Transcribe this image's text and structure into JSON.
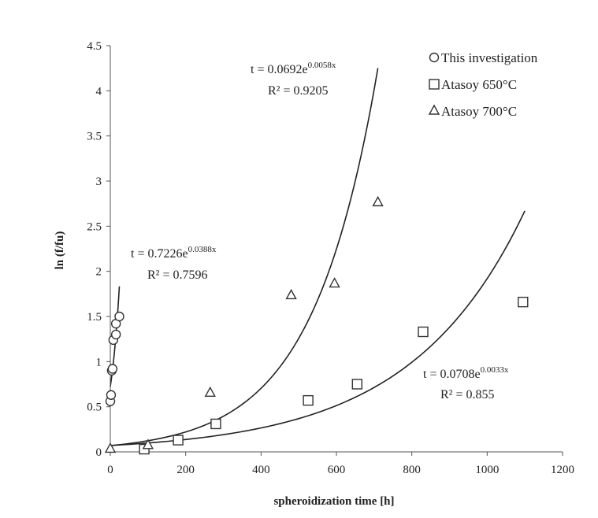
{
  "chart_data": {
    "type": "scatter",
    "xlabel": "spheroidization time [h]",
    "ylabel": "ln (f/fu)",
    "xlim": [
      0,
      1200
    ],
    "ylim": [
      0,
      4.5
    ],
    "x_ticks": [
      "0",
      "200",
      "400",
      "600",
      "800",
      "1000",
      "1200"
    ],
    "y_ticks": [
      "0",
      "0.5",
      "1",
      "1.5",
      "2",
      "2.5",
      "3",
      "3.5",
      "4",
      "4.5"
    ],
    "legend": {
      "position": "top-right"
    },
    "series": [
      {
        "name": "This investigation",
        "marker": "circle",
        "points": [
          {
            "x": 0,
            "y": 0.56
          },
          {
            "x": 2,
            "y": 0.63
          },
          {
            "x": 4,
            "y": 0.9
          },
          {
            "x": 6,
            "y": 0.92
          },
          {
            "x": 8,
            "y": 1.24
          },
          {
            "x": 15,
            "y": 1.3
          },
          {
            "x": 15,
            "y": 1.42
          },
          {
            "x": 24,
            "y": 1.5
          }
        ],
        "fit": {
          "a": 0.7226,
          "b": 0.0388,
          "x_from": 0,
          "x_to": 24,
          "equation": "t = 0.7226e",
          "exponent": "0.0388x",
          "r2": "R² = 0.7596"
        }
      },
      {
        "name": "Atasoy 650°C",
        "marker": "square",
        "points": [
          {
            "x": 90,
            "y": 0.03
          },
          {
            "x": 180,
            "y": 0.13
          },
          {
            "x": 280,
            "y": 0.31
          },
          {
            "x": 525,
            "y": 0.57
          },
          {
            "x": 655,
            "y": 0.75
          },
          {
            "x": 830,
            "y": 1.33
          },
          {
            "x": 1095,
            "y": 1.66
          }
        ],
        "fit": {
          "a": 0.0708,
          "b": 0.0033,
          "x_from": 0,
          "x_to": 1100,
          "equation": "t = 0.0708e",
          "exponent": "0.0033x",
          "r2": "R² = 0.855"
        }
      },
      {
        "name": "Atasoy 700°C",
        "marker": "triangle",
        "points": [
          {
            "x": 0,
            "y": 0.04
          },
          {
            "x": 100,
            "y": 0.08
          },
          {
            "x": 265,
            "y": 0.66
          },
          {
            "x": 480,
            "y": 1.74
          },
          {
            "x": 595,
            "y": 1.87
          },
          {
            "x": 710,
            "y": 2.77
          }
        ],
        "fit": {
          "a": 0.0692,
          "b": 0.0058,
          "x_from": 0,
          "x_to": 710,
          "equation": "t = 0.0692e",
          "exponent": "0.0058x",
          "r2": "R² = 0.9205"
        }
      }
    ]
  }
}
